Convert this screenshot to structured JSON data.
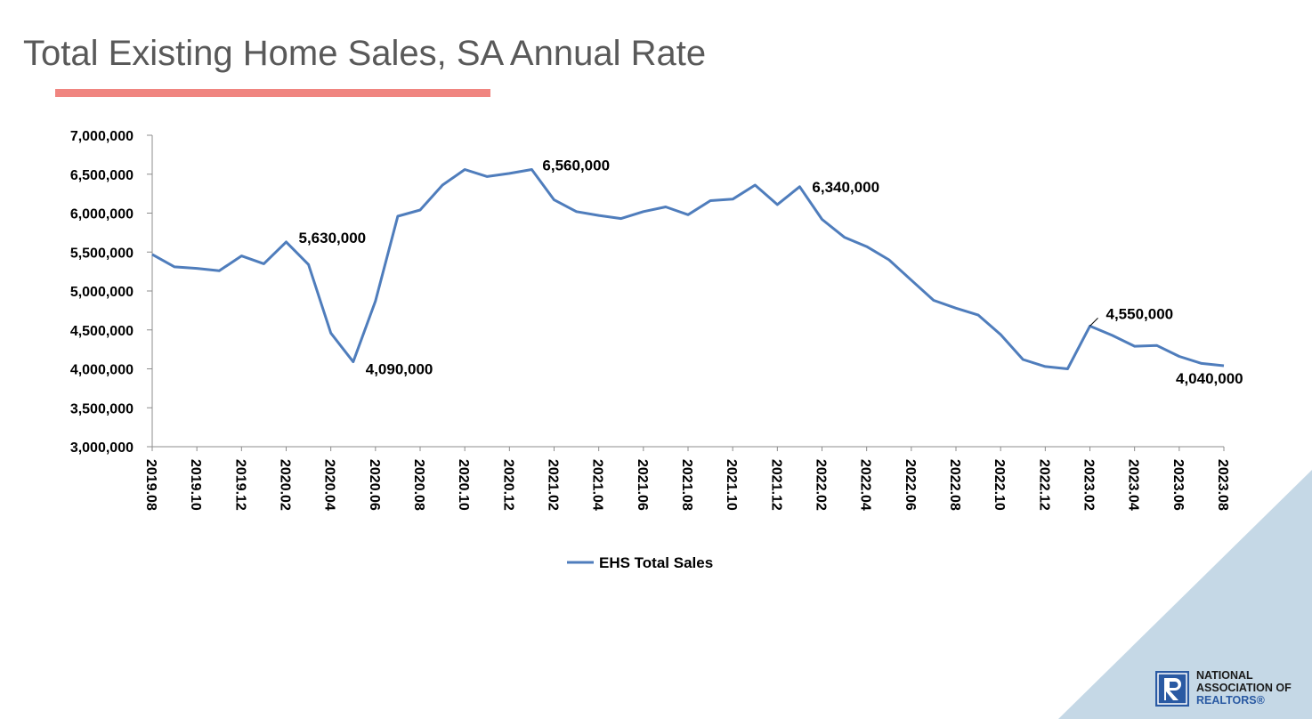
{
  "title": "Total Existing Home Sales, SA Annual Rate",
  "colors": {
    "accent": "#f08580",
    "line": "#4f7dbc",
    "corner": "#c5d8e6",
    "logo": "#2a5aa3"
  },
  "logo": {
    "icon": "realtor-r-icon",
    "lines": [
      "NATIONAL",
      "ASSOCIATION OF",
      "REALTORS®"
    ]
  },
  "chart_data": {
    "type": "line",
    "title": "Total Existing Home Sales, SA Annual Rate",
    "xlabel": "",
    "ylabel": "",
    "ylim": [
      3000000,
      7000000
    ],
    "y_ticks": [
      3000000,
      3500000,
      4000000,
      4500000,
      5000000,
      5500000,
      6000000,
      6500000,
      7000000
    ],
    "y_tick_labels": [
      "3,000,000",
      "3,500,000",
      "4,000,000",
      "4,500,000",
      "5,000,000",
      "5,500,000",
      "6,000,000",
      "6,500,000",
      "7,000,000"
    ],
    "x_tick_labels": [
      "2019.08",
      "2019.10",
      "2019.12",
      "2020.02",
      "2020.04",
      "2020.06",
      "2020.08",
      "2020.10",
      "2020.12",
      "2021.02",
      "2021.04",
      "2021.06",
      "2021.08",
      "2021.10",
      "2021.12",
      "2022.02",
      "2022.04",
      "2022.06",
      "2022.08",
      "2022.10",
      "2022.12",
      "2023.02",
      "2023.04",
      "2023.06",
      "2023.08"
    ],
    "grid": false,
    "legend_position": "bottom",
    "x": [
      "2019.08",
      "2019.09",
      "2019.10",
      "2019.11",
      "2019.12",
      "2020.01",
      "2020.02",
      "2020.03",
      "2020.04",
      "2020.05",
      "2020.06",
      "2020.07",
      "2020.08",
      "2020.09",
      "2020.10",
      "2020.11",
      "2020.12",
      "2021.01",
      "2021.02",
      "2021.03",
      "2021.04",
      "2021.05",
      "2021.06",
      "2021.07",
      "2021.08",
      "2021.09",
      "2021.10",
      "2021.11",
      "2021.12",
      "2022.01",
      "2022.02",
      "2022.03",
      "2022.04",
      "2022.05",
      "2022.06",
      "2022.07",
      "2022.08",
      "2022.09",
      "2022.10",
      "2022.11",
      "2022.12",
      "2023.01",
      "2023.02",
      "2023.03",
      "2023.04",
      "2023.05",
      "2023.06",
      "2023.07",
      "2023.08"
    ],
    "series": [
      {
        "name": "EHS Total Sales",
        "values": [
          5470000,
          5310000,
          5290000,
          5260000,
          5450000,
          5350000,
          5630000,
          5340000,
          4460000,
          4090000,
          4870000,
          5960000,
          6040000,
          6360000,
          6560000,
          6470000,
          6510000,
          6560000,
          6170000,
          6020000,
          5970000,
          5930000,
          6020000,
          6080000,
          5980000,
          6160000,
          6180000,
          6360000,
          6110000,
          6340000,
          5920000,
          5690000,
          5570000,
          5400000,
          5140000,
          4880000,
          4780000,
          4690000,
          4440000,
          4120000,
          4030000,
          4000000,
          4550000,
          4430000,
          4290000,
          4300000,
          4160000,
          4070000,
          4040000
        ]
      }
    ],
    "annotations": [
      {
        "index": 6,
        "label": "5,630,000"
      },
      {
        "index": 9,
        "label": "4,090,000"
      },
      {
        "index": 17,
        "label": "6,560,000"
      },
      {
        "index": 29,
        "label": "6,340,000"
      },
      {
        "index": 42,
        "label": "4,550,000"
      },
      {
        "index": 48,
        "label": "4,040,000"
      }
    ]
  }
}
